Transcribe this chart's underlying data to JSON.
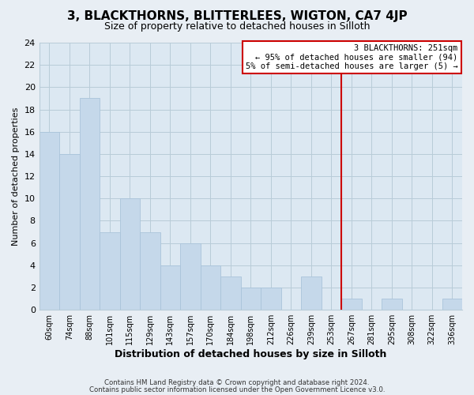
{
  "title": "3, BLACKTHORNS, BLITTERLEES, WIGTON, CA7 4JP",
  "subtitle": "Size of property relative to detached houses in Silloth",
  "xlabel": "Distribution of detached houses by size in Silloth",
  "ylabel": "Number of detached properties",
  "bin_labels": [
    "60sqm",
    "74sqm",
    "88sqm",
    "101sqm",
    "115sqm",
    "129sqm",
    "143sqm",
    "157sqm",
    "170sqm",
    "184sqm",
    "198sqm",
    "212sqm",
    "226sqm",
    "239sqm",
    "253sqm",
    "267sqm",
    "281sqm",
    "295sqm",
    "308sqm",
    "322sqm",
    "336sqm"
  ],
  "bar_heights": [
    16,
    14,
    19,
    7,
    10,
    7,
    4,
    6,
    4,
    3,
    2,
    2,
    0,
    3,
    0,
    1,
    0,
    1,
    0,
    0,
    1
  ],
  "bar_color": "#c5d8ea",
  "bar_edge_color": "#aac4da",
  "vline_x": 14,
  "vline_color": "#cc0000",
  "annotation_line1": "3 BLACKTHORNS: 251sqm",
  "annotation_line2": "← 95% of detached houses are smaller (94)",
  "annotation_line3": "5% of semi-detached houses are larger (5) →",
  "ylim": [
    0,
    24
  ],
  "yticks": [
    0,
    2,
    4,
    6,
    8,
    10,
    12,
    14,
    16,
    18,
    20,
    22,
    24
  ],
  "footer_line1": "Contains HM Land Registry data © Crown copyright and database right 2024.",
  "footer_line2": "Contains public sector information licensed under the Open Government Licence v3.0.",
  "outer_bg_color": "#e8eef4",
  "plot_bg_color": "#dce8f2",
  "grid_color": "#b8ccd8",
  "title_fontsize": 11,
  "subtitle_fontsize": 9,
  "xlabel_fontsize": 9,
  "ylabel_fontsize": 8
}
